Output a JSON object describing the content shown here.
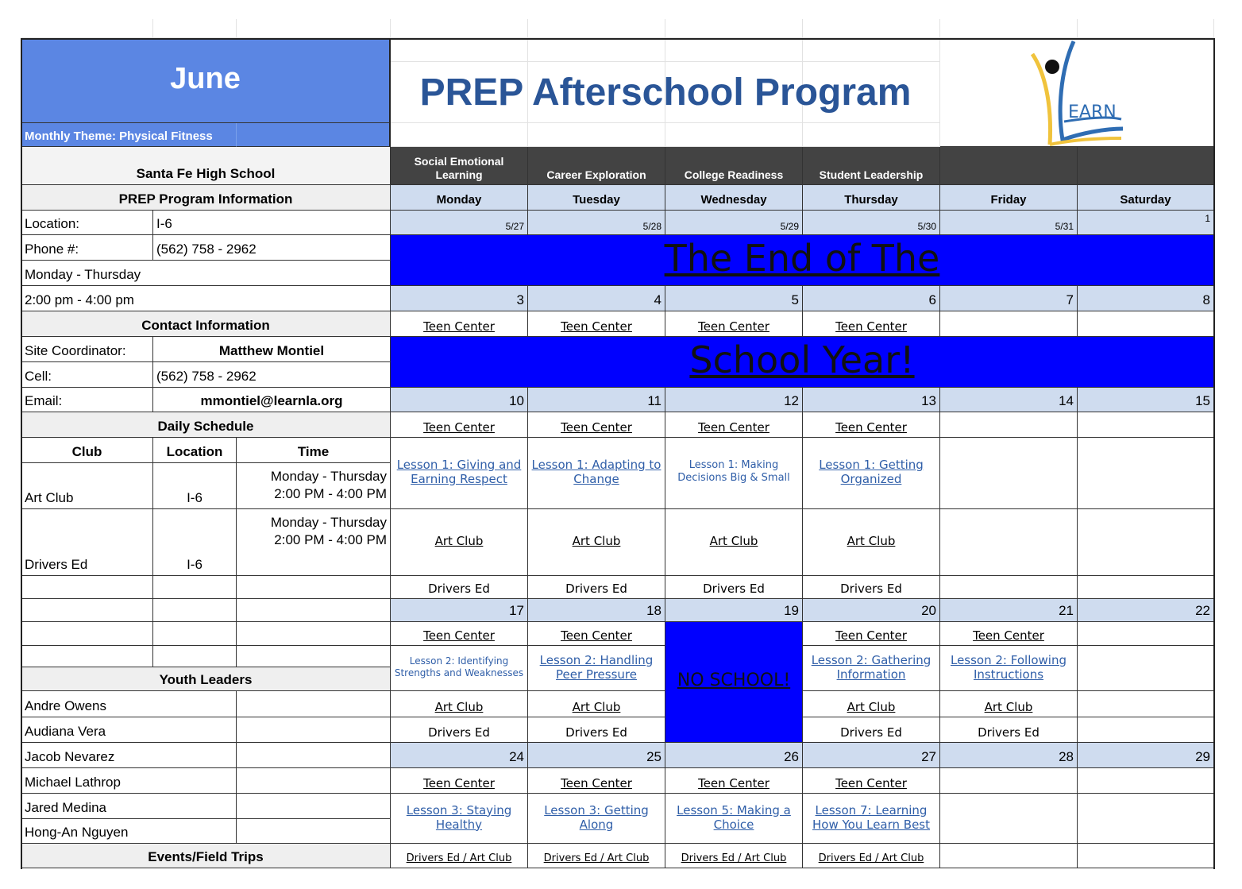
{
  "header": {
    "month": "June",
    "theme": "Monthly Theme: Physical Fitness",
    "title": "PREP Afterschool Program",
    "logo_text": "EARN",
    "logo_colors": {
      "blue": "#2f6db3",
      "yellow": "#f0c33c",
      "dot": "#111111"
    }
  },
  "info": {
    "school": "Santa Fe High School",
    "program_heading": "PREP Program Information",
    "location_label": "Location:",
    "location_value": "I-6",
    "phone_label": "Phone #:",
    "phone_value": "(562) 758 - 2962",
    "days": "Monday - Thursday",
    "hours": "2:00 pm - 4:00 pm",
    "contact_heading": "Contact Information",
    "coordinator_label": "Site Coordinator:",
    "coordinator_value": "Matthew Montiel",
    "cell_label": "Cell:",
    "cell_value": "(562) 758 - 2962",
    "email_label": "Email:",
    "email_value": "mmontiel@learnla.org"
  },
  "schedule": {
    "heading": "Daily Schedule",
    "columns": [
      "Club",
      "Location",
      "Time"
    ],
    "rows": [
      {
        "club": "Art Club",
        "location": "I-6",
        "days": "Monday - Thursday",
        "time": "2:00 PM - 4:00 PM"
      },
      {
        "club": "Drivers Ed",
        "location": "I-6",
        "days": "Monday - Thursday",
        "time": "2:00 PM - 4:00 PM"
      }
    ]
  },
  "youth_leaders": {
    "heading": "Youth Leaders",
    "names": [
      "Andre Owens",
      "Audiana Vera",
      "Jacob Nevarez",
      "Michael Lathrop",
      "Jared Medina",
      "Hong-An Nguyen"
    ]
  },
  "events_heading": "Events/Field Trips",
  "calendar": {
    "categories": [
      "Social Emotional Learning",
      "Career Exploration",
      "College Readiness",
      "Student Leadership",
      "",
      ""
    ],
    "days": [
      "Monday",
      "Tuesday",
      "Wednesday",
      "Thursday",
      "Friday",
      "Saturday"
    ],
    "week0_dates": [
      "5/27",
      "5/28",
      "5/29",
      "5/30",
      "5/31",
      "1"
    ],
    "banner1": "The End of The",
    "banner2": "School Year!",
    "week1": {
      "dates": [
        "3",
        "4",
        "5",
        "6",
        "7",
        "8"
      ],
      "teen": [
        "Teen Center",
        "Teen Center",
        "Teen Center",
        "Teen Center"
      ]
    },
    "week2": {
      "dates": [
        "10",
        "11",
        "12",
        "13",
        "14",
        "15"
      ],
      "teen": [
        "Teen Center",
        "Teen Center",
        "Teen Center",
        "Teen Center"
      ],
      "lessons": [
        "Lesson 1: Giving and Earning Respect",
        "Lesson 1: Adapting to Change",
        "Lesson 1: Making Decisions Big & Small",
        "Lesson 1: Getting Organized"
      ],
      "art": [
        "Art Club",
        "Art Club",
        "Art Club",
        "Art Club"
      ],
      "drivers": [
        "Drivers Ed",
        "Drivers Ed",
        "Drivers Ed",
        "Drivers Ed"
      ]
    },
    "week3": {
      "dates": [
        "17",
        "18",
        "19",
        "20",
        "21",
        "22"
      ],
      "no_school": "NO SCHOOL!",
      "teen": [
        "Teen Center",
        "Teen Center",
        "Teen Center",
        "Teen Center"
      ],
      "lessons": [
        "Lesson 2: Identifying Strengths and Weaknesses",
        "Lesson 2: Handling Peer Pressure",
        "Lesson 2: Gathering Information",
        "Lesson 2: Following Instructions"
      ],
      "art": [
        "Art Club",
        "Art Club",
        "Art Club",
        "Art Club"
      ],
      "drivers": [
        "Drivers Ed",
        "Drivers Ed",
        "Drivers Ed",
        "Drivers Ed"
      ]
    },
    "week4": {
      "dates": [
        "24",
        "25",
        "26",
        "27",
        "28",
        "29"
      ],
      "teen": [
        "Teen Center",
        "Teen Center",
        "Teen Center",
        "Teen Center"
      ],
      "lessons": [
        "Lesson 3: Staying Healthy",
        "Lesson 3: Getting Along",
        "Lesson 5: Making a Choice",
        "Lesson 7: Learning How You Learn Best"
      ],
      "events": [
        "Drivers Ed / Art Club",
        "Drivers Ed / Art Club",
        "Drivers Ed / Art Club",
        "Drivers Ed / Art Club"
      ]
    },
    "colors": {
      "banner": "#0000ff",
      "header_blue": "#5b86e3",
      "day_row": "#cfdcef",
      "category_row": "#434343",
      "lesson_link": "#2f5ea8"
    }
  }
}
